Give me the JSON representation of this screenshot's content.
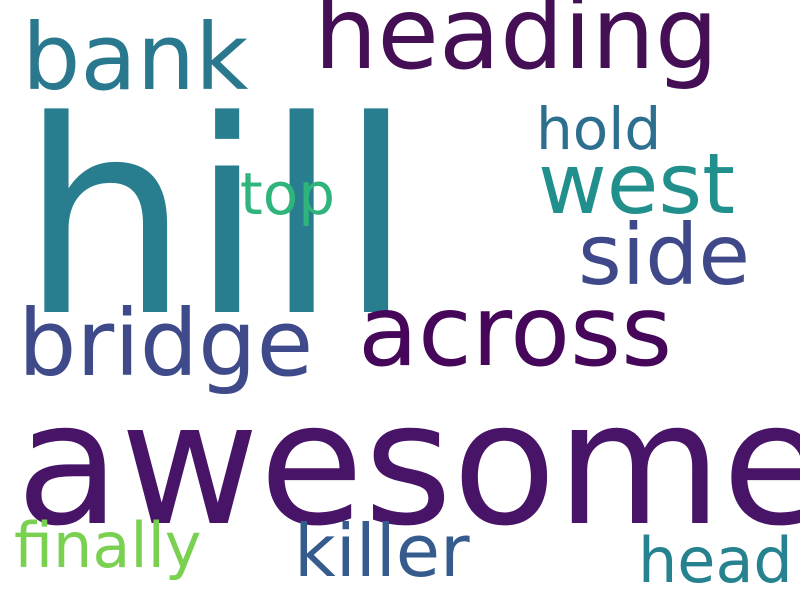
{
  "words": {
    "hill": {
      "text": "hill",
      "color": "#287d8e"
    },
    "heading": {
      "text": "heading",
      "color": "#440f55"
    },
    "bank": {
      "text": "bank",
      "color": "#2a788e"
    },
    "hold": {
      "text": "hold",
      "color": "#2d6f8e"
    },
    "west": {
      "text": "west",
      "color": "#21908c"
    },
    "top": {
      "text": "top",
      "color": "#2fb47c"
    },
    "side": {
      "text": "side",
      "color": "#3f4889"
    },
    "across": {
      "text": "across",
      "color": "#46075a"
    },
    "bridge": {
      "text": "bridge",
      "color": "#3e4a89"
    },
    "awesome": {
      "text": "awesome",
      "color": "#481467"
    },
    "finally": {
      "text": "finally",
      "color": "#7ad151"
    },
    "killer": {
      "text": "killer",
      "color": "#365c8d"
    },
    "head": {
      "text": "head",
      "color": "#26828e"
    }
  }
}
